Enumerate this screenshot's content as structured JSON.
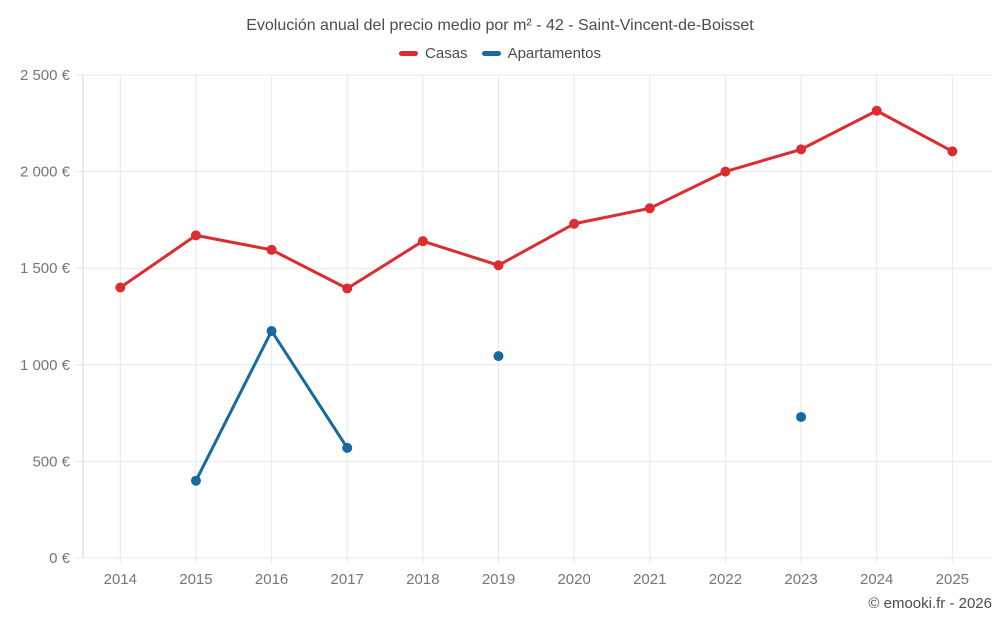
{
  "title": "Evolución anual del precio medio por m² - 42 - Saint-Vincent-de-Boisset",
  "footer": "© emooki.fr - 2026",
  "colors": {
    "casas": "#dd2c2f",
    "apartamentos": "#17699f",
    "grid": "#e8e8e8",
    "axis": "#d4d4d4",
    "tick_text": "#76767a",
    "heading_text": "#4c4c50"
  },
  "legend": [
    {
      "label": "Casas",
      "color": "#dd2c2f"
    },
    {
      "label": "Apartamentos",
      "color": "#17699f"
    }
  ],
  "chart_data": {
    "type": "line",
    "title": "Evolución anual del precio medio por m² - 42 - Saint-Vincent-de-Boisset",
    "xlabel": "",
    "ylabel": "",
    "x": [
      "2014",
      "2015",
      "2016",
      "2017",
      "2018",
      "2019",
      "2020",
      "2021",
      "2022",
      "2023",
      "2024",
      "2025"
    ],
    "series": [
      {
        "name": "Casas",
        "color": "#dd2c2f",
        "values": [
          1400,
          1670,
          1595,
          1395,
          1640,
          1515,
          1730,
          1810,
          2000,
          2115,
          2315,
          2105
        ]
      },
      {
        "name": "Apartamentos",
        "color": "#17699f",
        "values": [
          null,
          400,
          1175,
          570,
          null,
          1045,
          null,
          null,
          null,
          730,
          null,
          null
        ]
      }
    ],
    "ylim": [
      0,
      2500
    ],
    "y_ticks": [
      {
        "value": 0,
        "label": "0 €"
      },
      {
        "value": 500,
        "label": "500 €"
      },
      {
        "value": 1000,
        "label": "1 000 €"
      },
      {
        "value": 1500,
        "label": "1 500 €"
      },
      {
        "value": 2000,
        "label": "2 000 €"
      },
      {
        "value": 2500,
        "label": "2 500 €"
      }
    ],
    "grid": true,
    "legend_position": "top"
  }
}
